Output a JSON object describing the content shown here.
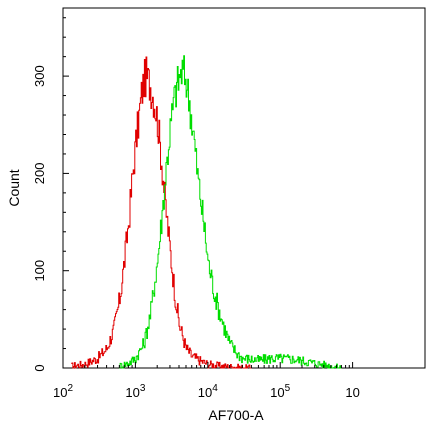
{
  "chart_data": {
    "type": "line",
    "title": "",
    "xlabel": "AF700-A",
    "ylabel": "Count",
    "x_scale": "log",
    "xlim": [
      100,
      10000000
    ],
    "ylim": [
      0,
      370
    ],
    "x_ticks": [
      {
        "value": 100,
        "base": "10",
        "exp": "2"
      },
      {
        "value": 1000,
        "base": "10",
        "exp": "3"
      },
      {
        "value": 10000,
        "base": "10",
        "exp": "4"
      },
      {
        "value": 100000,
        "base": "10",
        "exp": "5"
      },
      {
        "value": 1000000,
        "base": "10",
        "exp": ""
      }
    ],
    "y_ticks": [
      0,
      100,
      200,
      300
    ],
    "grid": false,
    "legend": "none",
    "series": [
      {
        "color": "#e00000",
        "points": [
          [
            130,
            2
          ],
          [
            200,
            4
          ],
          [
            300,
            10
          ],
          [
            400,
            20
          ],
          [
            500,
            40
          ],
          [
            600,
            70
          ],
          [
            700,
            110
          ],
          [
            800,
            150
          ],
          [
            900,
            195
          ],
          [
            1000,
            230
          ],
          [
            1100,
            255
          ],
          [
            1200,
            280
          ],
          [
            1300,
            295
          ],
          [
            1400,
            300
          ],
          [
            1600,
            290
          ],
          [
            1800,
            275
          ],
          [
            2000,
            255
          ],
          [
            2300,
            210
          ],
          [
            2600,
            165
          ],
          [
            3000,
            120
          ],
          [
            3500,
            75
          ],
          [
            4000,
            45
          ],
          [
            5000,
            20
          ],
          [
            6000,
            12
          ],
          [
            8000,
            7
          ],
          [
            10000,
            4
          ],
          [
            15000,
            2
          ],
          [
            25000,
            1
          ],
          [
            40000,
            0
          ]
        ]
      },
      {
        "color": "#00dd00",
        "points": [
          [
            600,
            2
          ],
          [
            800,
            5
          ],
          [
            1000,
            10
          ],
          [
            1300,
            25
          ],
          [
            1600,
            55
          ],
          [
            2000,
            110
          ],
          [
            2300,
            155
          ],
          [
            2600,
            200
          ],
          [
            3000,
            245
          ],
          [
            3300,
            270
          ],
          [
            3700,
            290
          ],
          [
            4100,
            300
          ],
          [
            4500,
            305
          ],
          [
            5000,
            295
          ],
          [
            5600,
            270
          ],
          [
            6300,
            240
          ],
          [
            7000,
            205
          ],
          [
            8000,
            170
          ],
          [
            9000,
            140
          ],
          [
            10000,
            110
          ],
          [
            12000,
            80
          ],
          [
            14000,
            60
          ],
          [
            17000,
            40
          ],
          [
            20000,
            25
          ],
          [
            25000,
            15
          ],
          [
            30000,
            10
          ],
          [
            50000,
            8
          ],
          [
            80000,
            10
          ],
          [
            150000,
            9
          ],
          [
            300000,
            5
          ],
          [
            500000,
            2
          ],
          [
            700000,
            0
          ]
        ]
      }
    ]
  }
}
